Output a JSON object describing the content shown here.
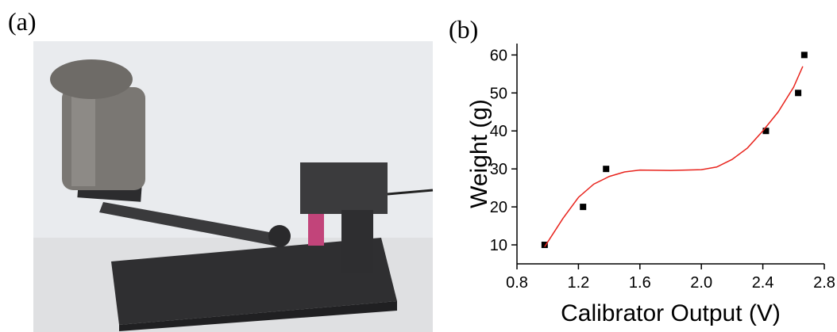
{
  "panel_labels": [
    "(a)",
    "(b)"
  ],
  "chart_data": {
    "type": "scatter",
    "x_label": "Calibrator Output (V)",
    "y_label": "Weight (g)",
    "xlim": [
      0.8,
      2.8
    ],
    "ylim": [
      5,
      63
    ],
    "xticks": [
      0.8,
      1.2,
      1.6,
      {
        "value": 2,
        "label": "2.0"
      },
      2.4,
      2.8
    ],
    "yticks": [
      10,
      20,
      30,
      40,
      50,
      60
    ],
    "series": [
      {
        "mode": "markers",
        "color": "#000000",
        "x": [
          0.98,
          1.23,
          1.38,
          2.42,
          2.63,
          2.67
        ],
        "values": [
          10,
          20,
          30,
          40,
          50,
          60
        ]
      },
      {
        "mode": "line",
        "color": "#e8231c",
        "x": [
          0.98,
          1.1,
          1.2,
          1.3,
          1.4,
          1.5,
          1.6,
          1.8,
          2.0,
          2.1,
          2.2,
          2.3,
          2.4,
          2.5,
          2.6,
          2.66
        ],
        "values": [
          9.5,
          17,
          22.5,
          26,
          28,
          29.2,
          29.7,
          29.6,
          29.8,
          30.5,
          32.5,
          35.5,
          40,
          45,
          51.5,
          57
        ]
      }
    ]
  }
}
